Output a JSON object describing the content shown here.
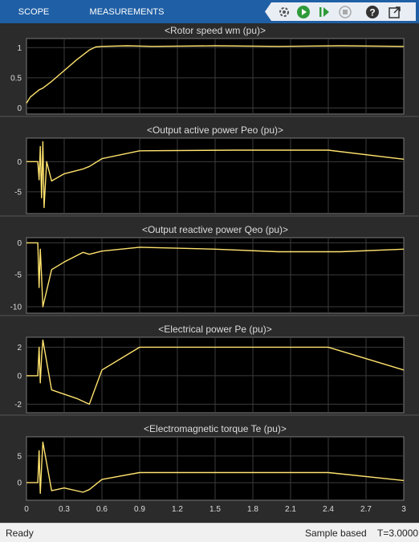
{
  "toolbar": {
    "tabs": [
      "SCOPE",
      "MEASUREMENTS"
    ],
    "icons": [
      "highlight-simulink-block-icon",
      "run-icon",
      "step-forward-icon",
      "stop-icon",
      "help-icon",
      "undock-icon"
    ]
  },
  "status": {
    "left": "Ready",
    "mode": "Sample based",
    "time": "T=3.0000"
  },
  "colors": {
    "toolbar": "#1f5fa5",
    "background": "#2b2b2b",
    "axes": "#000000",
    "grid": "#3c3c3c",
    "trace": "#ffe36e"
  },
  "chart_data": [
    {
      "type": "line",
      "title": "<Rotor speed  wm (pu)>",
      "xlim": [
        0,
        3
      ],
      "ylim": [
        -0.1,
        1.15
      ],
      "yticks": [
        0,
        0.5,
        1
      ],
      "ytick_labels": [
        "0",
        "0.5",
        "1"
      ],
      "grid": true,
      "series": [
        {
          "x": [
            0,
            0.03,
            0.1,
            0.13,
            0.2,
            0.3,
            0.4,
            0.5,
            0.55,
            0.6,
            0.8,
            1.0,
            1.5,
            2.0,
            2.5,
            3.0
          ],
          "y": [
            0.08,
            0.18,
            0.3,
            0.33,
            0.44,
            0.62,
            0.8,
            0.96,
            1.01,
            1.02,
            1.03,
            1.02,
            1.03,
            1.02,
            1.03,
            1.02
          ]
        }
      ]
    },
    {
      "type": "line",
      "title": "<Output active power   Peo (pu)>",
      "xlim": [
        0,
        3
      ],
      "ylim": [
        -8.6,
        3.9
      ],
      "yticks": [
        -5,
        0
      ],
      "ytick_labels": [
        "-5",
        "0"
      ],
      "grid": true,
      "series": [
        {
          "x": [
            0,
            0.09,
            0.1,
            0.11,
            0.12,
            0.13,
            0.14,
            0.16,
            0.2,
            0.3,
            0.45,
            0.5,
            0.6,
            0.9,
            1.65,
            2.4,
            3.0
          ],
          "y": [
            0,
            0,
            -3,
            2.5,
            -6,
            3.3,
            -7.6,
            0,
            -3.2,
            -2.0,
            -1.2,
            -0.8,
            0.5,
            1.8,
            1.9,
            1.9,
            0.4
          ]
        }
      ]
    },
    {
      "type": "line",
      "title": "<Output reactive power  Qeo (pu)>",
      "xlim": [
        0,
        3
      ],
      "ylim": [
        -11,
        0.8
      ],
      "yticks": [
        -10,
        -5,
        0
      ],
      "ytick_labels": [
        "-10",
        "-5",
        "0"
      ],
      "grid": true,
      "series": [
        {
          "x": [
            0,
            0.09,
            0.1,
            0.11,
            0.12,
            0.13,
            0.2,
            0.3,
            0.45,
            0.5,
            0.6,
            0.9,
            1.5,
            2.0,
            2.5,
            3.0
          ],
          "y": [
            0,
            0,
            -7,
            -1,
            -5.3,
            -10,
            -4.2,
            -3.0,
            -1.5,
            -1.8,
            -1.3,
            -0.7,
            -1.0,
            -1.4,
            -1.4,
            -1.0
          ]
        }
      ]
    },
    {
      "type": "line",
      "title": "<Electrical power  Pe (pu)>",
      "xlim": [
        0,
        3
      ],
      "ylim": [
        -2.6,
        2.7
      ],
      "yticks": [
        -2,
        0,
        2
      ],
      "ytick_labels": [
        "-2",
        "0",
        "2"
      ],
      "grid": true,
      "series": [
        {
          "x": [
            0,
            0.09,
            0.1,
            0.11,
            0.12,
            0.13,
            0.2,
            0.3,
            0.4,
            0.5,
            0.6,
            0.9,
            1.65,
            2.4,
            3.0
          ],
          "y": [
            0,
            0,
            2.0,
            -0.5,
            1.3,
            2.5,
            -1.0,
            -1.3,
            -1.6,
            -2.0,
            0.4,
            2.0,
            2.0,
            2.0,
            0.4
          ]
        }
      ]
    },
    {
      "type": "line",
      "title": "<Electromagnetic torque  Te (pu)>",
      "xlim": [
        0,
        3
      ],
      "ylim": [
        -3.3,
        8.6
      ],
      "yticks": [
        0,
        5
      ],
      "ytick_labels": [
        "0",
        "5"
      ],
      "xticks": [
        0,
        0.3,
        0.6,
        0.9,
        1.2,
        1.5,
        1.8,
        2.1,
        2.4,
        2.7,
        3
      ],
      "xtick_labels": [
        "0",
        "0.3",
        "0.6",
        "0.9",
        "1.2",
        "1.5",
        "1.8",
        "2.1",
        "2.4",
        "2.7",
        "3"
      ],
      "grid": true,
      "series": [
        {
          "x": [
            0,
            0.09,
            0.1,
            0.11,
            0.12,
            0.13,
            0.2,
            0.3,
            0.45,
            0.5,
            0.6,
            0.9,
            1.65,
            2.4,
            3.0
          ],
          "y": [
            0,
            0,
            6,
            -2,
            3,
            7.6,
            -1.5,
            -1.0,
            -1.8,
            -1.3,
            0.6,
            1.9,
            1.9,
            1.9,
            0.4
          ]
        }
      ]
    }
  ]
}
